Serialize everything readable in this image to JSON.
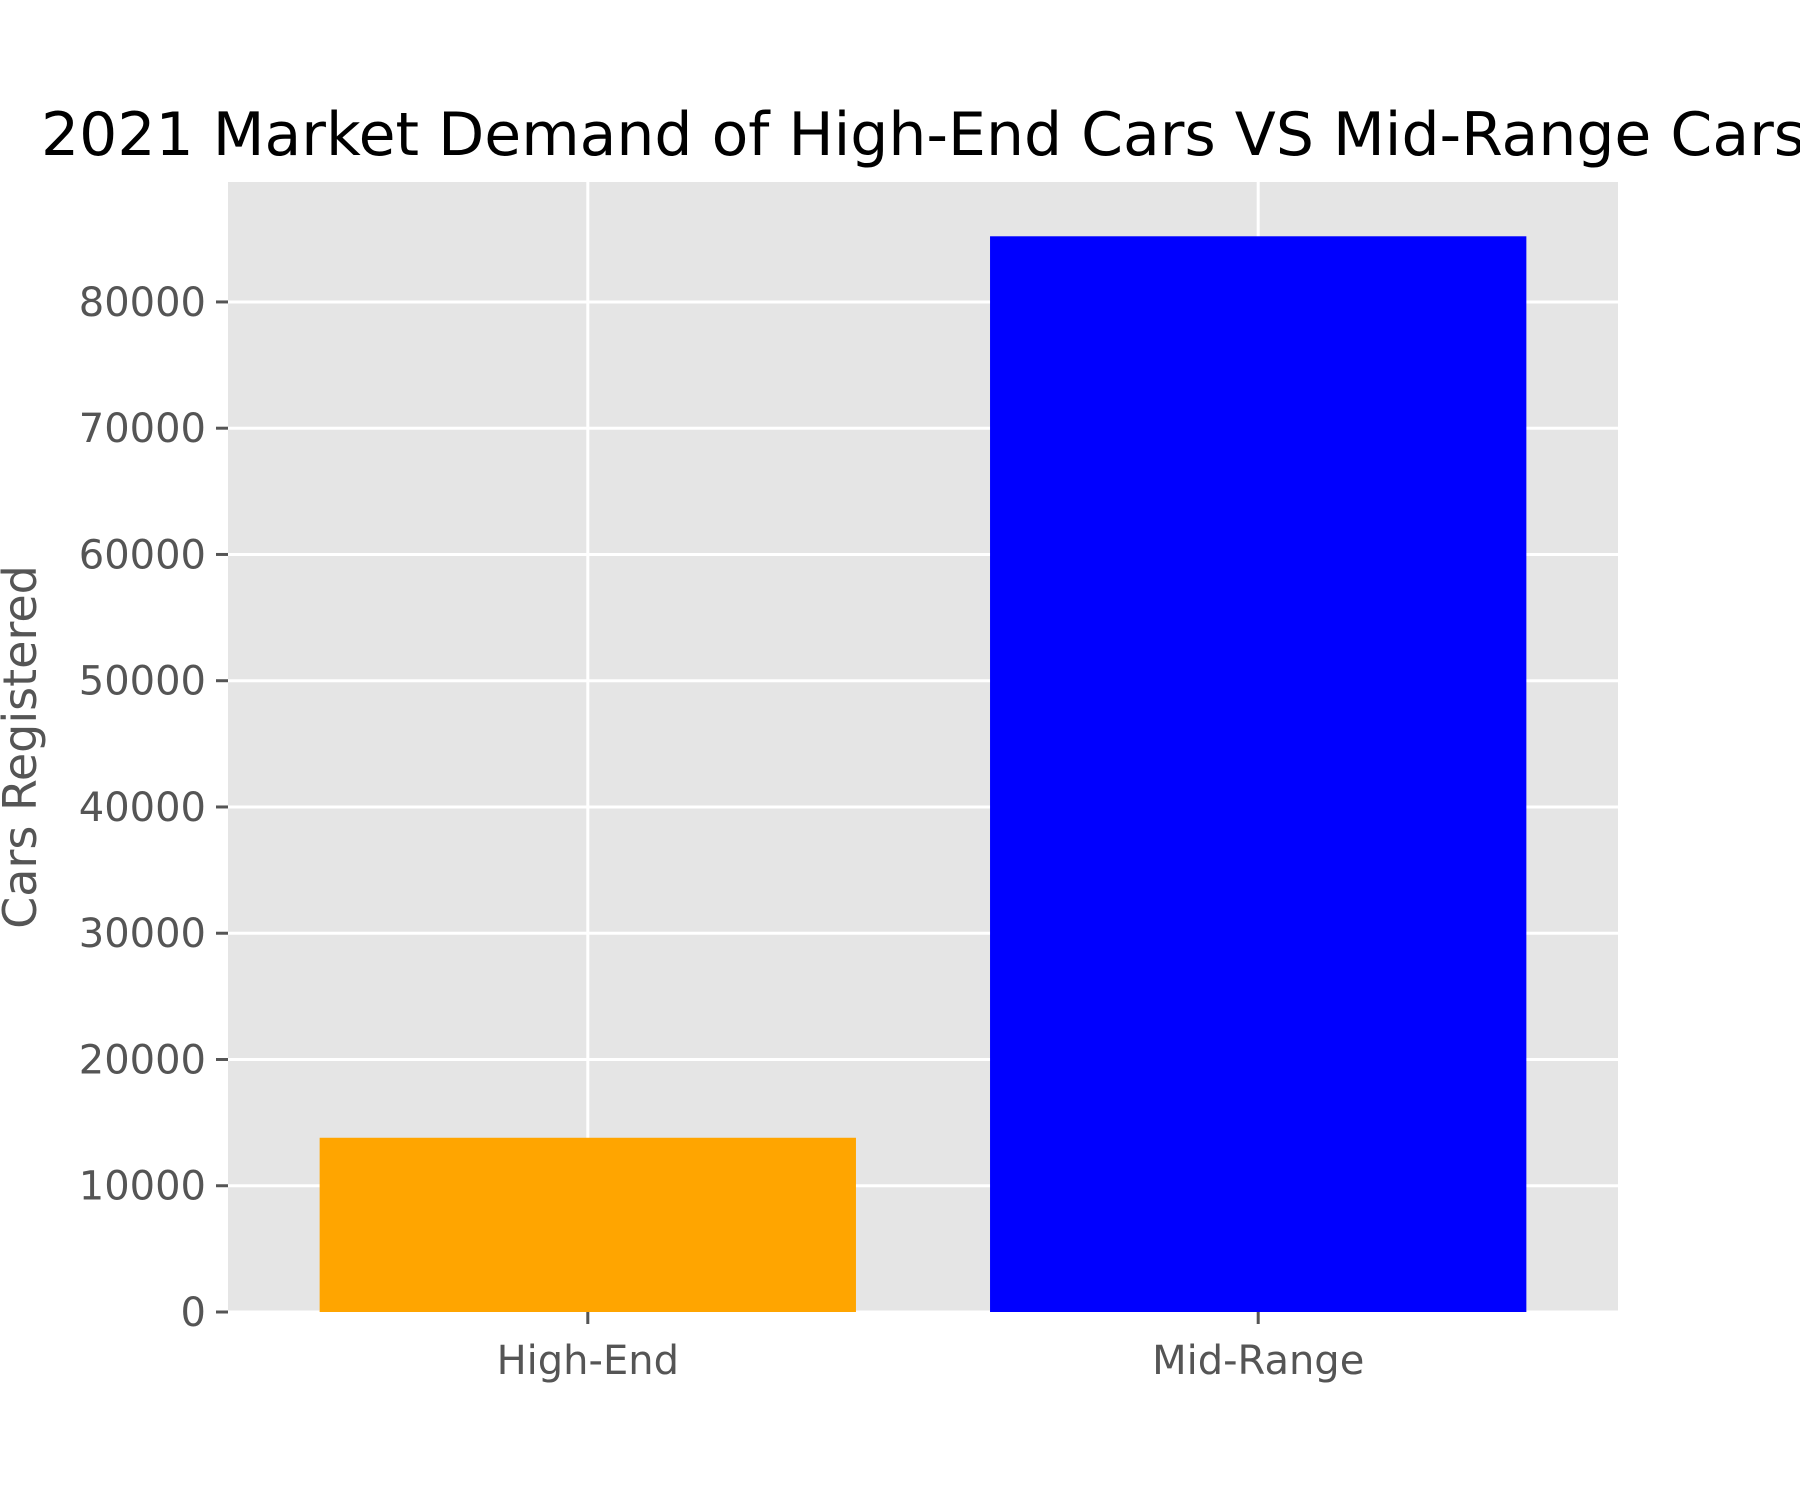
{
  "chart_data": {
    "type": "bar",
    "title": "2021 Market Demand of High-End Cars VS Mid-Range Cars",
    "xlabel": "",
    "ylabel": "Cars Registered",
    "categories": [
      "High-End",
      "Mid-Range"
    ],
    "values": [
      13800,
      85200
    ],
    "colors": [
      "#FFA500",
      "#0000FF"
    ],
    "ylim": [
      0,
      89500
    ],
    "yticks": [
      0,
      10000,
      20000,
      30000,
      40000,
      50000,
      60000,
      70000,
      80000
    ],
    "grid": true,
    "background": "#E5E5E5"
  }
}
